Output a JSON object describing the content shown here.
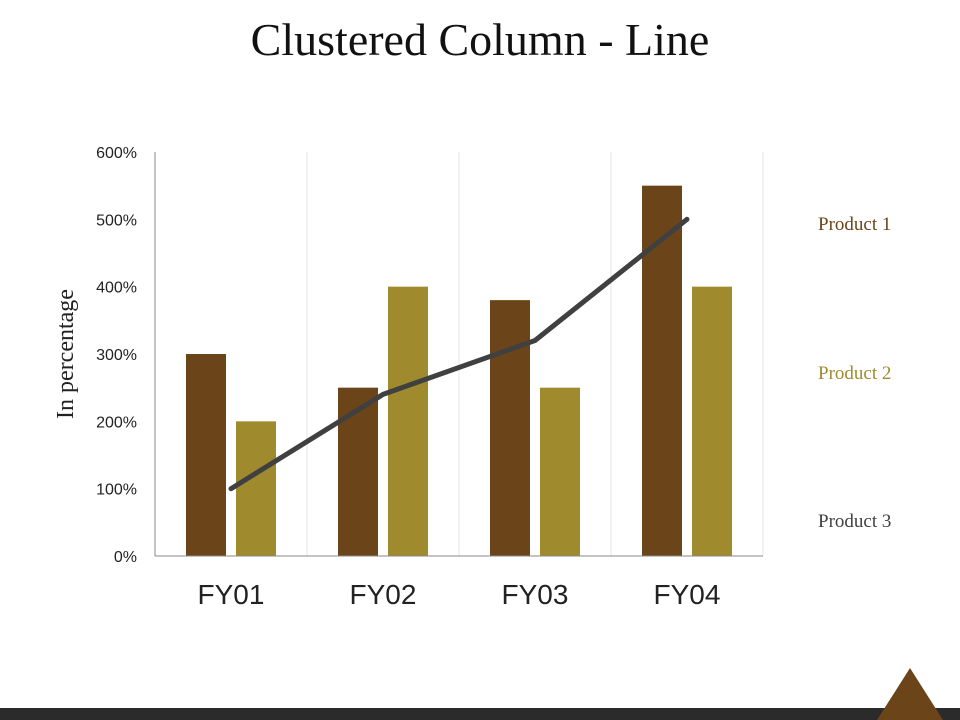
{
  "title": "Clustered Column - Line",
  "colors": {
    "product1": "#6b4519",
    "product2": "#a08a2e",
    "product3": "#404040",
    "axis": "#888888",
    "grid": "#e6e6e6"
  },
  "chart_data": {
    "type": "bar",
    "categories": [
      "FY01",
      "FY02",
      "FY03",
      "FY04"
    ],
    "series": [
      {
        "name": "Product 1",
        "kind": "bar",
        "values": [
          300,
          250,
          380,
          550
        ]
      },
      {
        "name": "Product 2",
        "kind": "bar",
        "values": [
          200,
          400,
          250,
          400
        ]
      },
      {
        "name": "Product 3",
        "kind": "line",
        "values": [
          100,
          240,
          320,
          500
        ]
      }
    ],
    "ylabel": "In percentage",
    "ylim": [
      0,
      600
    ],
    "yticks": [
      {
        "value": 0,
        "label": "0%"
      },
      {
        "value": 100,
        "label": "100%"
      },
      {
        "value": 200,
        "label": "200%"
      },
      {
        "value": 300,
        "label": "300%"
      },
      {
        "value": 400,
        "label": "400%"
      },
      {
        "value": 500,
        "label": "500%"
      },
      {
        "value": 600,
        "label": "600%"
      }
    ],
    "legend_position": "right",
    "grid": false
  }
}
